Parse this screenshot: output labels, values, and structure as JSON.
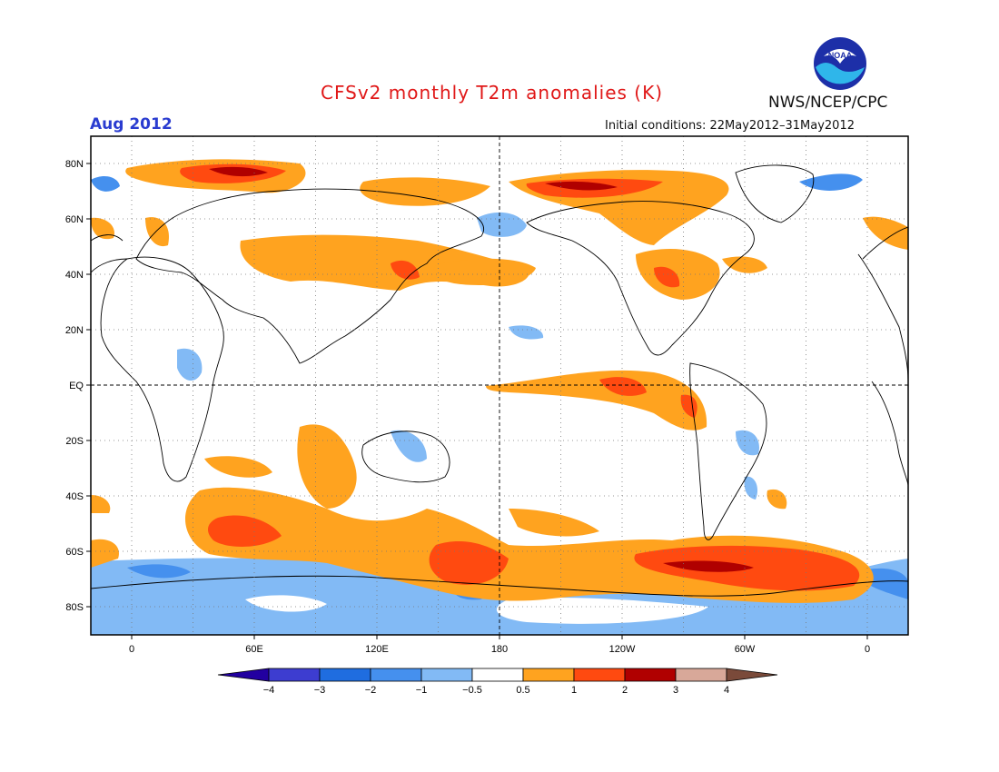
{
  "title": "CFSv2 monthly T2m anomalies (K)",
  "valid_month": "Aug 2012",
  "initial_conditions": "Initial conditions: 22May2012–31May2012",
  "organization": "NWS/NCEP/CPC",
  "logo": {
    "icon": "noaa-logo-icon",
    "text": "NOAA"
  },
  "map": {
    "projection": "cylindrical equidistant",
    "lon_range": [
      -20,
      380
    ],
    "lat_range": [
      -90,
      90
    ],
    "lat_ticks": [
      "80N",
      "60N",
      "40N",
      "20N",
      "EQ",
      "20S",
      "40S",
      "60S",
      "80S"
    ],
    "lon_ticks": [
      "0",
      "60E",
      "120E",
      "180",
      "120W",
      "60W",
      "0"
    ],
    "grid": "dotted every 30 longitude, 20 latitude",
    "reference_lines": [
      "equator",
      "180 meridian"
    ]
  },
  "legend": {
    "labels": [
      "−4",
      "−3",
      "−2",
      "−1",
      "−0.5",
      "0.5",
      "1",
      "2",
      "3",
      "4"
    ],
    "colors": [
      "#2200a0",
      "#3d3dd0",
      "#1f6de0",
      "#4590ee",
      "#82baf5",
      "#ffffff",
      "#ffa31f",
      "#ff4a10",
      "#b00000",
      "#d8a899",
      "#7a4a3a"
    ]
  }
}
